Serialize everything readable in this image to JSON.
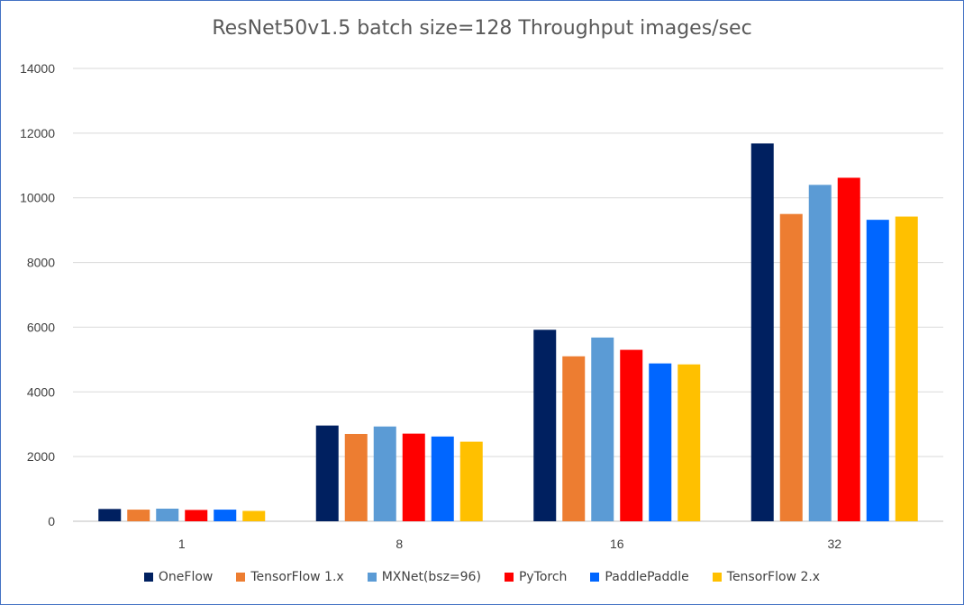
{
  "chart_data": {
    "type": "bar",
    "title": "ResNet50v1.5 batch size=128 Throughput images/sec",
    "xlabel": "",
    "ylabel": "",
    "categories": [
      "1",
      "8",
      "16",
      "32"
    ],
    "ylim": [
      0,
      14000
    ],
    "yticks": [
      0,
      2000,
      4000,
      6000,
      8000,
      10000,
      12000,
      14000
    ],
    "grid": true,
    "legend_position": "bottom",
    "series": [
      {
        "name": "OneFlow",
        "color": "#002060",
        "values": [
          380,
          2960,
          5920,
          11680
        ]
      },
      {
        "name": "TensorFlow 1.x",
        "color": "#ed7d31",
        "values": [
          360,
          2700,
          5100,
          9500
        ]
      },
      {
        "name": "MXNet(bsz=96)",
        "color": "#5b9bd5",
        "values": [
          390,
          2930,
          5680,
          10400
        ]
      },
      {
        "name": "PyTorch",
        "color": "#ff0000",
        "values": [
          350,
          2710,
          5300,
          10620
        ]
      },
      {
        "name": "PaddlePaddle",
        "color": "#0066ff",
        "values": [
          360,
          2620,
          4880,
          9320
        ]
      },
      {
        "name": "TensorFlow 2.x",
        "color": "#ffc000",
        "values": [
          320,
          2460,
          4850,
          9420
        ]
      }
    ]
  }
}
